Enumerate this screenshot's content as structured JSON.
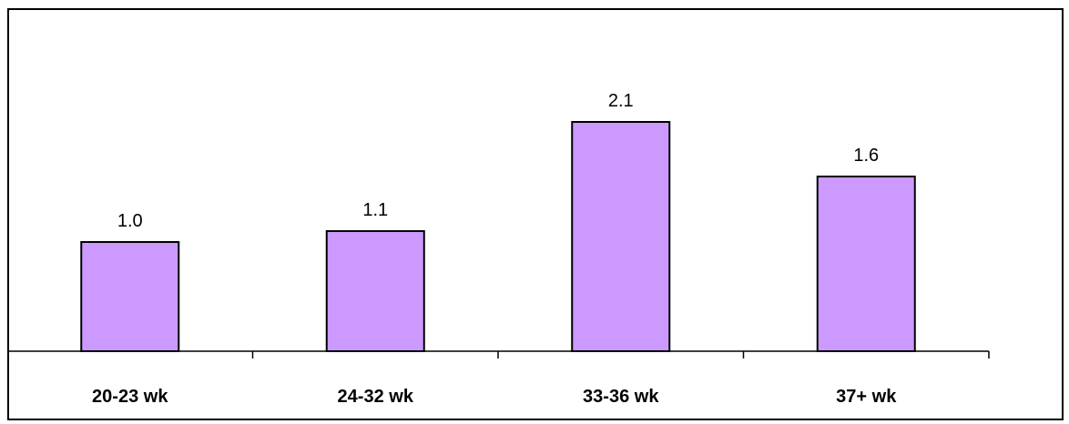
{
  "chart_data": {
    "type": "bar",
    "categories": [
      "20-23 wk",
      "24-32 wk",
      "33-36 wk",
      "37+ wk"
    ],
    "values": [
      1.0,
      1.1,
      2.1,
      1.6
    ],
    "value_labels": [
      "1.0",
      "1.1",
      "2.1",
      "1.6"
    ],
    "title": "",
    "xlabel": "",
    "ylabel": "",
    "ylim": [
      0,
      2.8
    ],
    "grid": false,
    "bar_color": "#CC99FF",
    "bar_stroke": "#000000"
  }
}
